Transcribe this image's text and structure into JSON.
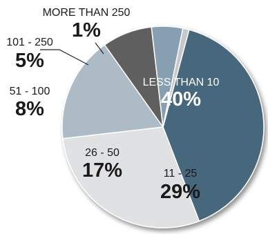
{
  "chart_data": {
    "type": "pie",
    "title": "",
    "categories": [
      "LESS THAN 10",
      "11 - 25",
      "26 - 50",
      "51 - 100",
      "101 - 250",
      "MORE THAN 250"
    ],
    "values": [
      40,
      29,
      17,
      8,
      5,
      1
    ],
    "value_labels": [
      "40%",
      "29%",
      "17%",
      "8%",
      "5%",
      "1%"
    ],
    "colors": [
      "#47687c",
      "#dfe1e3",
      "#acbbc5",
      "#5e5f61",
      "#87a0b1",
      "#c6c9cc"
    ],
    "label_colors": [
      "#ffffff",
      "#1a1a1a",
      "#1a1a1a",
      "#1a1a1a",
      "#1a1a1a",
      "#1a1a1a"
    ],
    "legend": "none"
  }
}
